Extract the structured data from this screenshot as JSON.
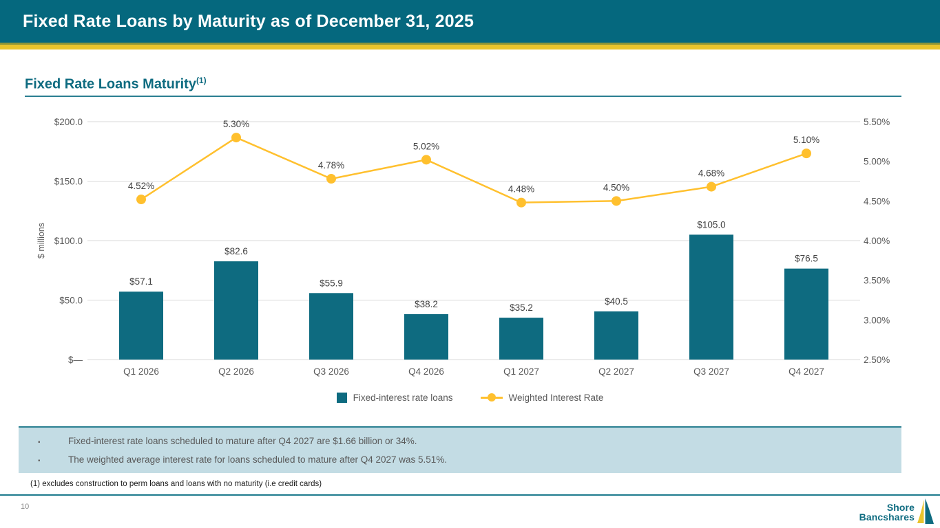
{
  "slide": {
    "header_title": "Fixed Rate Loans by Maturity as of December 31, 2025",
    "page_number": "10",
    "footnote": "(1) excludes construction to perm loans and loans with no maturity (i.e credit cards)",
    "logo": {
      "line1": "Shore",
      "line2": "Bancshares"
    }
  },
  "section": {
    "title": "Fixed Rate Loans Maturity",
    "title_superscript": "(1)"
  },
  "notes": {
    "bullet_char": "▪",
    "bullets": [
      "Fixed-interest rate loans scheduled to mature after Q4 2027 are $1.66 billion or 34%.",
      "The weighted average interest rate for loans scheduled to mature after Q4 2027 was 5.51%."
    ]
  },
  "chart_data": {
    "type": "combo-bar-line",
    "categories": [
      "Q1 2026",
      "Q2 2026",
      "Q3 2026",
      "Q4 2026",
      "Q1 2027",
      "Q2 2027",
      "Q3 2027",
      "Q4 2027"
    ],
    "series": [
      {
        "name": "Fixed-interest rate loans",
        "type": "bar",
        "axis": "left",
        "values": [
          57.1,
          82.6,
          55.9,
          38.2,
          35.2,
          40.5,
          105.0,
          76.5
        ],
        "labels": [
          "$57.1",
          "$82.6",
          "$55.9",
          "$38.2",
          "$35.2",
          "$40.5",
          "$105.0",
          "$76.5"
        ],
        "color": "#0E6B80"
      },
      {
        "name": "Weighted Interest Rate",
        "type": "line",
        "axis": "right",
        "values": [
          4.52,
          5.3,
          4.78,
          5.02,
          4.48,
          4.5,
          4.68,
          5.1
        ],
        "labels": [
          "4.52%",
          "5.30%",
          "4.78%",
          "5.02%",
          "4.48%",
          "4.50%",
          "4.68%",
          "5.10%"
        ],
        "color": "#FFC02E"
      }
    ],
    "left_axis": {
      "title": "$ millions",
      "ticks": [
        "$200.0",
        "$150.0",
        "$100.0",
        "$50.0",
        "$—"
      ],
      "tick_values": [
        200,
        150,
        100,
        50,
        0
      ],
      "range": [
        0,
        200
      ]
    },
    "right_axis": {
      "ticks": [
        "5.50%",
        "5.00%",
        "4.50%",
        "4.00%",
        "3.50%",
        "3.00%",
        "2.50%"
      ],
      "tick_values": [
        5.5,
        5.0,
        4.5,
        4.0,
        3.5,
        3.0,
        2.5
      ],
      "range": [
        2.5,
        5.5
      ]
    },
    "grid": true,
    "legend_position": "bottom",
    "colors": {
      "grid": "#D9D9D9",
      "axis_text": "#595959",
      "data_label": "#404040"
    }
  }
}
